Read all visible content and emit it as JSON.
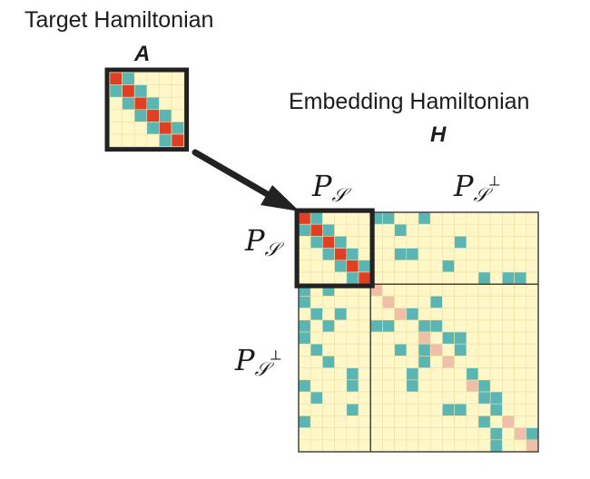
{
  "target": {
    "title": "Target Hamiltonian",
    "symbol": "A"
  },
  "embedding": {
    "title": "Embedding Hamiltonian",
    "symbol": "H"
  },
  "labels": {
    "p_s_top": {
      "base": "P",
      "sub": "𝒮",
      "sup": ""
    },
    "p_sperp_top": {
      "base": "P",
      "sub": "𝒮",
      "sup": "⊥"
    },
    "p_s_left": {
      "base": "P",
      "sub": "𝒮",
      "sup": ""
    },
    "p_sperp_left": {
      "base": "P",
      "sub": "𝒮",
      "sup": "⊥"
    }
  },
  "colors": {
    "background_cell": "#fff7c8",
    "grid_line": "#ece2a6",
    "off_diagonal": "#5bb5b3",
    "diagonal_target": "#de3f25",
    "diagonal_complement": "#f0bfa8",
    "frame": "#222222",
    "block_border": "#444444"
  },
  "target_matrix": {
    "size": 6,
    "diagonal": [
      0,
      1,
      2,
      3,
      4,
      5
    ],
    "off_diagonal": [
      [
        0,
        1
      ],
      [
        1,
        0
      ],
      [
        1,
        2
      ],
      [
        2,
        1
      ],
      [
        2,
        3
      ],
      [
        3,
        2
      ],
      [
        3,
        4
      ],
      [
        4,
        3
      ],
      [
        4,
        5
      ],
      [
        5,
        4
      ]
    ]
  },
  "embedding_matrix": {
    "size": 20,
    "subspace_size": 6,
    "diagonal_target": [
      [
        0,
        0
      ],
      [
        1,
        1
      ],
      [
        2,
        2
      ],
      [
        3,
        3
      ],
      [
        4,
        4
      ],
      [
        5,
        5
      ]
    ],
    "diagonal_complement": [
      [
        6,
        6
      ],
      [
        7,
        7
      ],
      [
        8,
        8
      ],
      [
        10,
        10
      ],
      [
        11,
        11
      ],
      [
        12,
        12
      ],
      [
        14,
        14
      ],
      [
        17,
        17
      ],
      [
        18,
        18
      ],
      [
        19,
        19
      ]
    ],
    "off_diagonal": [
      [
        0,
        1
      ],
      [
        1,
        0
      ],
      [
        1,
        2
      ],
      [
        2,
        1
      ],
      [
        2,
        3
      ],
      [
        3,
        2
      ],
      [
        3,
        4
      ],
      [
        4,
        3
      ],
      [
        4,
        5
      ],
      [
        5,
        4
      ],
      [
        0,
        6
      ],
      [
        0,
        7
      ],
      [
        0,
        10
      ],
      [
        1,
        8
      ],
      [
        2,
        13
      ],
      [
        3,
        8
      ],
      [
        3,
        9
      ],
      [
        4,
        12
      ],
      [
        5,
        15
      ],
      [
        5,
        17
      ],
      [
        5,
        18
      ],
      [
        6,
        0
      ],
      [
        6,
        2
      ],
      [
        7,
        0
      ],
      [
        8,
        1
      ],
      [
        8,
        3
      ],
      [
        9,
        0
      ],
      [
        9,
        2
      ],
      [
        10,
        0
      ],
      [
        11,
        1
      ],
      [
        12,
        2
      ],
      [
        13,
        4
      ],
      [
        14,
        0
      ],
      [
        14,
        4
      ],
      [
        15,
        1
      ],
      [
        16,
        4
      ],
      [
        17,
        0
      ],
      [
        7,
        11
      ],
      [
        8,
        8
      ],
      [
        8,
        9
      ],
      [
        9,
        6
      ],
      [
        9,
        7
      ],
      [
        9,
        10
      ],
      [
        9,
        11
      ],
      [
        10,
        12
      ],
      [
        10,
        13
      ],
      [
        11,
        8
      ],
      [
        11,
        10
      ],
      [
        11,
        11
      ],
      [
        11,
        13
      ],
      [
        12,
        10
      ],
      [
        13,
        9
      ],
      [
        13,
        14
      ],
      [
        14,
        9
      ],
      [
        14,
        15
      ],
      [
        15,
        15
      ],
      [
        15,
        16
      ],
      [
        16,
        12
      ],
      [
        16,
        13
      ],
      [
        16,
        16
      ],
      [
        17,
        15
      ],
      [
        17,
        17
      ],
      [
        18,
        16
      ],
      [
        18,
        19
      ],
      [
        19,
        16
      ]
    ]
  }
}
